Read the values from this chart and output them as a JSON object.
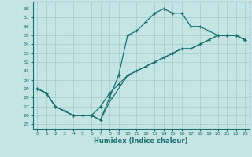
{
  "xlabel": "Humidex (Indice chaleur)",
  "bg_color": "#c5e5e5",
  "grid_color": "#a8cfcf",
  "line_color": "#1a7070",
  "xlim": [
    -0.5,
    23.5
  ],
  "ylim": [
    24.5,
    38.8
  ],
  "yticks": [
    25,
    26,
    27,
    28,
    29,
    30,
    31,
    32,
    33,
    34,
    35,
    36,
    37,
    38
  ],
  "xticks": [
    0,
    1,
    2,
    3,
    4,
    5,
    6,
    7,
    8,
    9,
    10,
    11,
    12,
    13,
    14,
    15,
    16,
    17,
    18,
    19,
    20,
    21,
    22,
    23
  ],
  "line1_x": [
    0,
    1,
    2,
    3,
    4,
    5,
    6,
    7,
    8,
    9,
    10,
    11,
    12,
    13,
    14,
    15,
    16,
    17,
    18,
    19,
    20,
    21,
    22,
    23
  ],
  "line1_y": [
    29.0,
    28.5,
    27.0,
    26.5,
    26.0,
    26.0,
    26.0,
    25.5,
    28.0,
    30.5,
    35.0,
    35.5,
    36.5,
    37.5,
    38.0,
    37.5,
    37.5,
    36.0,
    36.0,
    35.5,
    35.0,
    35.0,
    35.0,
    34.5
  ],
  "line2_x": [
    0,
    1,
    2,
    3,
    4,
    5,
    6,
    7,
    8,
    9,
    10,
    11,
    12,
    13,
    14,
    15,
    16,
    17,
    18,
    19,
    20,
    21,
    22,
    23
  ],
  "line2_y": [
    29.0,
    28.5,
    27.0,
    26.5,
    26.0,
    26.0,
    26.0,
    27.0,
    28.5,
    29.5,
    30.5,
    31.0,
    31.5,
    32.0,
    32.5,
    33.0,
    33.5,
    33.5,
    34.0,
    34.5,
    35.0,
    35.0,
    35.0,
    34.5
  ],
  "line3_x": [
    0,
    1,
    2,
    3,
    4,
    5,
    6,
    7,
    8,
    9,
    10,
    11,
    12,
    13,
    14,
    15,
    16,
    17,
    18,
    19,
    20,
    21,
    22,
    23
  ],
  "line3_y": [
    29.0,
    28.5,
    27.0,
    26.5,
    26.0,
    26.0,
    26.0,
    25.5,
    27.5,
    29.0,
    30.5,
    31.0,
    31.5,
    32.0,
    32.5,
    33.0,
    33.5,
    33.5,
    34.0,
    34.5,
    35.0,
    35.0,
    35.0,
    34.5
  ]
}
